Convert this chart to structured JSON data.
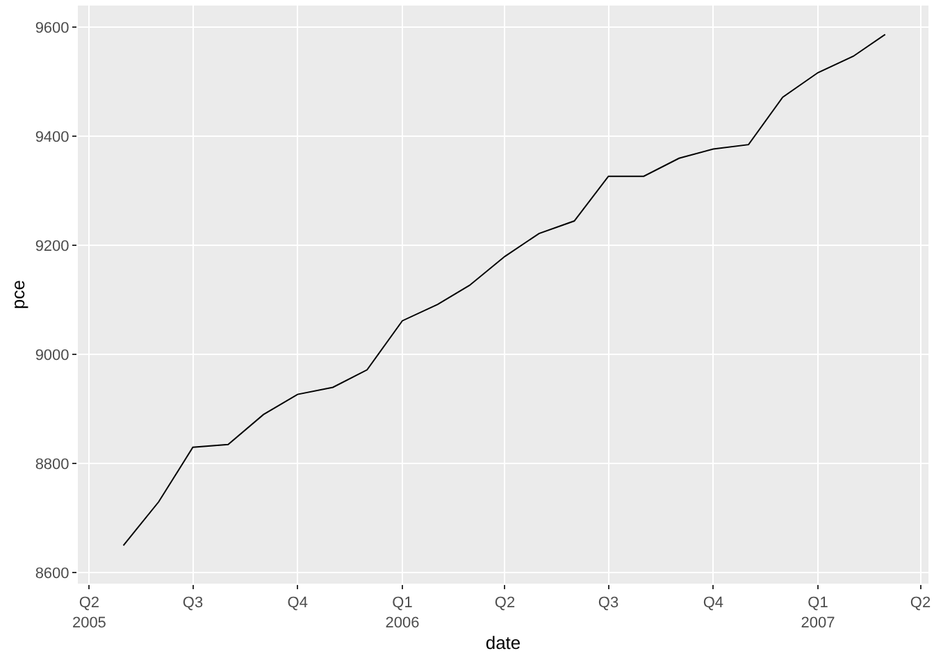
{
  "chart_data": {
    "type": "line",
    "xlabel": "date",
    "ylabel": "pce",
    "x": [
      "2005-05-01",
      "2005-06-01",
      "2005-07-01",
      "2005-08-01",
      "2005-09-01",
      "2005-10-01",
      "2005-11-01",
      "2005-12-01",
      "2006-01-01",
      "2006-02-01",
      "2006-03-01",
      "2006-04-01",
      "2006-05-01",
      "2006-06-01",
      "2006-07-01",
      "2006-08-01",
      "2006-09-01",
      "2006-10-01",
      "2006-11-01",
      "2006-12-01",
      "2007-01-01",
      "2007-02-01",
      "2007-03-01"
    ],
    "series": [
      {
        "color": "#000000",
        "values": [
          8650,
          8730,
          8830,
          8835,
          8890,
          8927,
          8940,
          8972,
          9062,
          9092,
          9127,
          9180,
          9222,
          9245,
          9327,
          9327,
          9360,
          9377,
          9385,
          9472,
          9517,
          9547,
          9587
        ]
      }
    ],
    "xlim": [
      "2005-03-22",
      "2007-04-08"
    ],
    "xticks": [
      {
        "value": "2005-04-01",
        "label": "Q2\n2005"
      },
      {
        "value": "2005-07-01",
        "label": "Q3"
      },
      {
        "value": "2005-10-01",
        "label": "Q4"
      },
      {
        "value": "2006-01-01",
        "label": "Q1\n2006"
      },
      {
        "value": "2006-04-01",
        "label": "Q2"
      },
      {
        "value": "2006-07-01",
        "label": "Q3"
      },
      {
        "value": "2006-10-01",
        "label": "Q4"
      },
      {
        "value": "2007-01-01",
        "label": "Q1\n2007"
      },
      {
        "value": "2007-04-01",
        "label": "Q2"
      }
    ],
    "ylim": [
      8580,
      9640
    ],
    "yticks": [
      8600,
      8800,
      9000,
      9200,
      9400,
      9600
    ],
    "grid": true,
    "marker": "none",
    "line_style": "solid"
  }
}
